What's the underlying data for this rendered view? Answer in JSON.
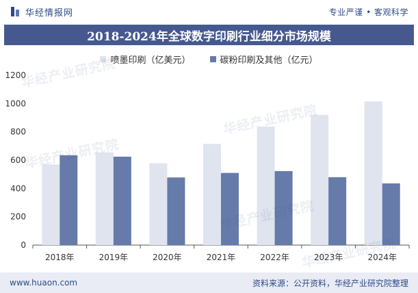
{
  "header": {
    "brand_name": "华经情报网",
    "slogan": "专业严谨 • 客观科学"
  },
  "title": "2018-2024年全球数字印刷行业细分市场规模",
  "footer": {
    "url": "www.huaon.com",
    "source": "资料来源：公开资料，华经产业研究院整理"
  },
  "colors": {
    "brand": "#2d4a86",
    "title_bar": "#46598f",
    "series_1": "#e0e4ef",
    "series_2": "#667ba9",
    "footer_bg": "#e9ecf4"
  },
  "icons": {
    "logo": "bar-logo-icon"
  },
  "chart_data": {
    "type": "bar",
    "title": "2018-2024年全球数字印刷行业细分市场规模",
    "categories": [
      "2018年",
      "2019年",
      "2020年",
      "2021年",
      "2022年",
      "2023年",
      "2024年"
    ],
    "series": [
      {
        "name": "喷墨印刷（亿美元）",
        "values": [
          570,
          655,
          578,
          715,
          838,
          920,
          1015
        ]
      },
      {
        "name": "碳粉印刷及其他（亿元）",
        "values": [
          635,
          625,
          478,
          510,
          523,
          480,
          436
        ]
      }
    ],
    "y_ticks": [
      "0",
      "200",
      "400",
      "600",
      "800",
      "1000",
      "1200"
    ],
    "ylim": [
      0,
      1200
    ],
    "xlabel": "",
    "ylabel": "",
    "grid": false,
    "legend": "top-center"
  }
}
